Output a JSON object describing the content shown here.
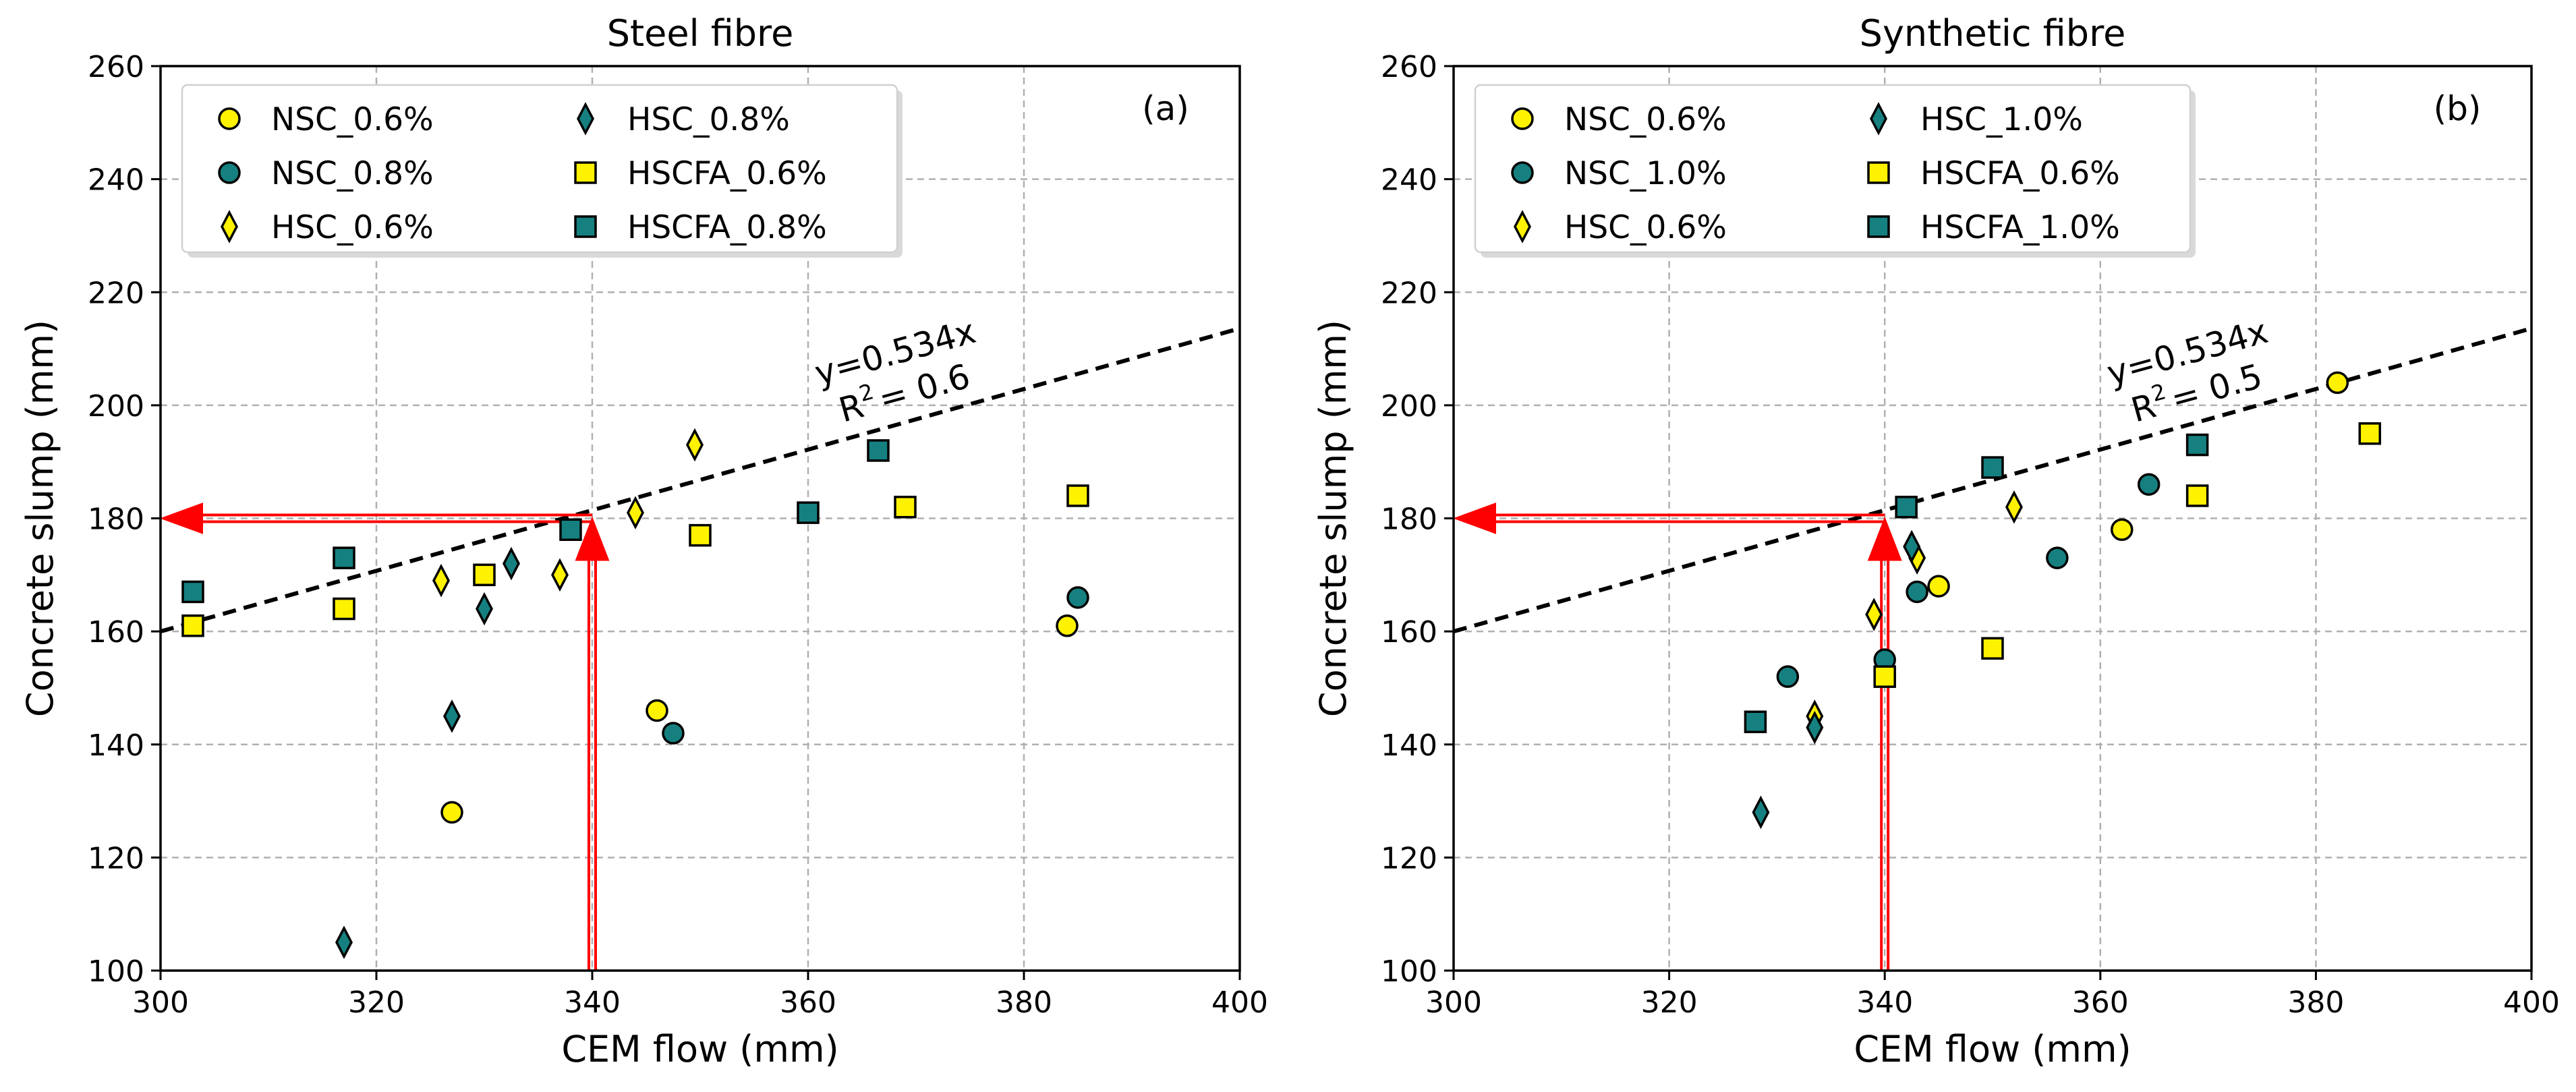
{
  "colors": {
    "yellow": "#fff200",
    "teal": "#168080",
    "edge": "#000000",
    "red": "#ff0000",
    "grid": "#b0b0b0"
  },
  "chart_data": [
    {
      "type": "scatter",
      "title": "Steel fibre",
      "panel_label": "(a)",
      "xlabel": "CEM flow (mm)",
      "ylabel": "Concrete slump (mm)",
      "xlim": [
        300,
        400
      ],
      "ylim": [
        100,
        260
      ],
      "xticks": [
        300,
        320,
        340,
        360,
        380,
        400
      ],
      "yticks": [
        100,
        120,
        140,
        160,
        180,
        200,
        220,
        240,
        260
      ],
      "grid": true,
      "legend_position": "top-left",
      "fit_line": {
        "slope": 0.534,
        "intercept": 0,
        "equation": "y=0.534x",
        "r2_text": "= 0.6"
      },
      "guide": {
        "x": 340,
        "y": 180
      },
      "series": [
        {
          "name": "NSC_0.6%",
          "marker": "circle",
          "color": "yellow",
          "points": [
            [
              327,
              128
            ],
            [
              346,
              146
            ],
            [
              384,
              161
            ]
          ]
        },
        {
          "name": "NSC_0.8%",
          "marker": "circle",
          "color": "teal",
          "points": [
            [
              347.5,
              142
            ],
            [
              385,
              166
            ]
          ]
        },
        {
          "name": "HSC_0.6%",
          "marker": "diamond",
          "color": "yellow",
          "points": [
            [
              326,
              169
            ],
            [
              337,
              170
            ],
            [
              344,
              181
            ],
            [
              349.5,
              193
            ]
          ]
        },
        {
          "name": "HSC_0.8%",
          "marker": "diamond",
          "color": "teal",
          "points": [
            [
              317,
              105
            ],
            [
              327,
              145
            ],
            [
              330,
              164
            ],
            [
              332.5,
              172
            ]
          ]
        },
        {
          "name": "HSCFA_0.6%",
          "marker": "square",
          "color": "yellow",
          "points": [
            [
              303,
              161
            ],
            [
              317,
              164
            ],
            [
              330,
              170
            ],
            [
              350,
              177
            ],
            [
              369,
              182
            ],
            [
              385,
              184
            ]
          ]
        },
        {
          "name": "HSCFA_0.8%",
          "marker": "square",
          "color": "teal",
          "points": [
            [
              303,
              167
            ],
            [
              317,
              173
            ],
            [
              338,
              178
            ],
            [
              360,
              181
            ],
            [
              366.5,
              192
            ]
          ]
        }
      ]
    },
    {
      "type": "scatter",
      "title": "Synthetic fibre",
      "panel_label": "(b)",
      "xlabel": "CEM flow (mm)",
      "ylabel": "Concrete slump (mm)",
      "xlim": [
        300,
        400
      ],
      "ylim": [
        100,
        260
      ],
      "xticks": [
        300,
        320,
        340,
        360,
        380,
        400
      ],
      "yticks": [
        100,
        120,
        140,
        160,
        180,
        200,
        220,
        240,
        260
      ],
      "grid": true,
      "legend_position": "top-left",
      "fit_line": {
        "slope": 0.534,
        "intercept": 0,
        "equation": "y=0.534x",
        "r2_text": "= 0.5"
      },
      "guide": {
        "x": 340,
        "y": 180
      },
      "series": [
        {
          "name": "NSC_0.6%",
          "marker": "circle",
          "color": "yellow",
          "points": [
            [
              345,
              168
            ],
            [
              362,
              178
            ],
            [
              382,
              204
            ]
          ]
        },
        {
          "name": "NSC_1.0%",
          "marker": "circle",
          "color": "teal",
          "points": [
            [
              331,
              152
            ],
            [
              340,
              155
            ],
            [
              343,
              167
            ],
            [
              356,
              173
            ],
            [
              364.5,
              186
            ]
          ]
        },
        {
          "name": "HSC_0.6%",
          "marker": "diamond",
          "color": "yellow",
          "points": [
            [
              333.5,
              145
            ],
            [
              339,
              163
            ],
            [
              343,
              173
            ],
            [
              352,
              182
            ]
          ]
        },
        {
          "name": "HSC_1.0%",
          "marker": "diamond",
          "color": "teal",
          "points": [
            [
              328.5,
              128
            ],
            [
              333.5,
              143
            ],
            [
              342.5,
              175
            ]
          ]
        },
        {
          "name": "HSCFA_0.6%",
          "marker": "square",
          "color": "yellow",
          "points": [
            [
              340,
              152
            ],
            [
              350,
              157
            ],
            [
              369,
              184
            ],
            [
              385,
              195
            ]
          ]
        },
        {
          "name": "HSCFA_1.0%",
          "marker": "square",
          "color": "teal",
          "points": [
            [
              328,
              144
            ],
            [
              342,
              182
            ],
            [
              350,
              189
            ],
            [
              369,
              193
            ]
          ]
        }
      ]
    }
  ]
}
